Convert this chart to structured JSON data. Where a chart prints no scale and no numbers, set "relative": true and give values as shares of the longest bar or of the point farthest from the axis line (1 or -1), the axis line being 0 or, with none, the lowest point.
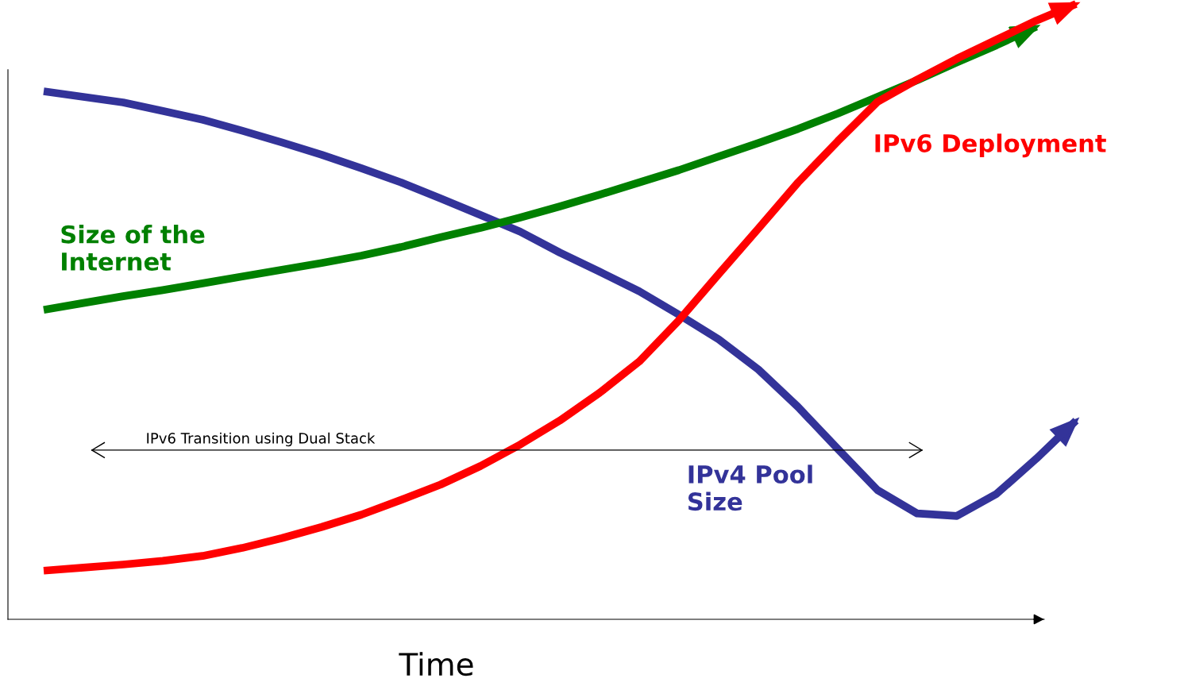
{
  "chart_data": {
    "type": "line",
    "relative": true,
    "xlabel": "Time",
    "marker": "none",
    "line_style": "solid",
    "categories": [
      null,
      null,
      null,
      null,
      null,
      null,
      null,
      null,
      null,
      null,
      null,
      null,
      null,
      null,
      null,
      null,
      null,
      null,
      null,
      null,
      null,
      null,
      null,
      null,
      null,
      null,
      null
    ],
    "series": [
      {
        "name": "IPv4 Pool\nSize",
        "color": "#333399",
        "values": [
          0.858,
          0.849,
          0.84,
          0.826,
          0.812,
          0.794,
          0.775,
          0.755,
          0.733,
          0.71,
          0.684,
          0.657,
          0.63,
          0.596,
          0.565,
          0.533,
          0.495,
          0.455,
          0.406,
          0.345,
          0.277,
          0.21,
          0.172,
          0.168,
          0.204,
          0.261,
          0.323
        ]
      },
      {
        "name": "Size of the\nInternet",
        "color": "#008000",
        "values": [
          0.503,
          0.514,
          0.525,
          0.535,
          0.546,
          0.557,
          0.568,
          0.579,
          0.591,
          0.605,
          0.621,
          0.636,
          0.653,
          0.671,
          0.69,
          0.71,
          0.73,
          0.752,
          0.774,
          0.797,
          0.822,
          0.849,
          0.876,
          0.905,
          0.933,
          0.963,
          null
        ]
      },
      {
        "name": "IPv6 Deployment",
        "color": "#ff0000",
        "values": [
          0.079,
          0.084,
          0.089,
          0.095,
          0.103,
          0.116,
          0.132,
          0.15,
          0.17,
          0.194,
          0.219,
          0.249,
          0.284,
          0.323,
          0.368,
          0.419,
          0.486,
          0.561,
          0.635,
          0.71,
          0.777,
          0.841,
          0.877,
          0.911,
          0.942,
          0.973,
          1.0
        ]
      }
    ],
    "ref_lines": [
      {
        "axis": "y",
        "value": 0.275,
        "label": "IPv6 Transition using Dual Stack",
        "color": "#000000",
        "line_style": "solid"
      }
    ]
  }
}
